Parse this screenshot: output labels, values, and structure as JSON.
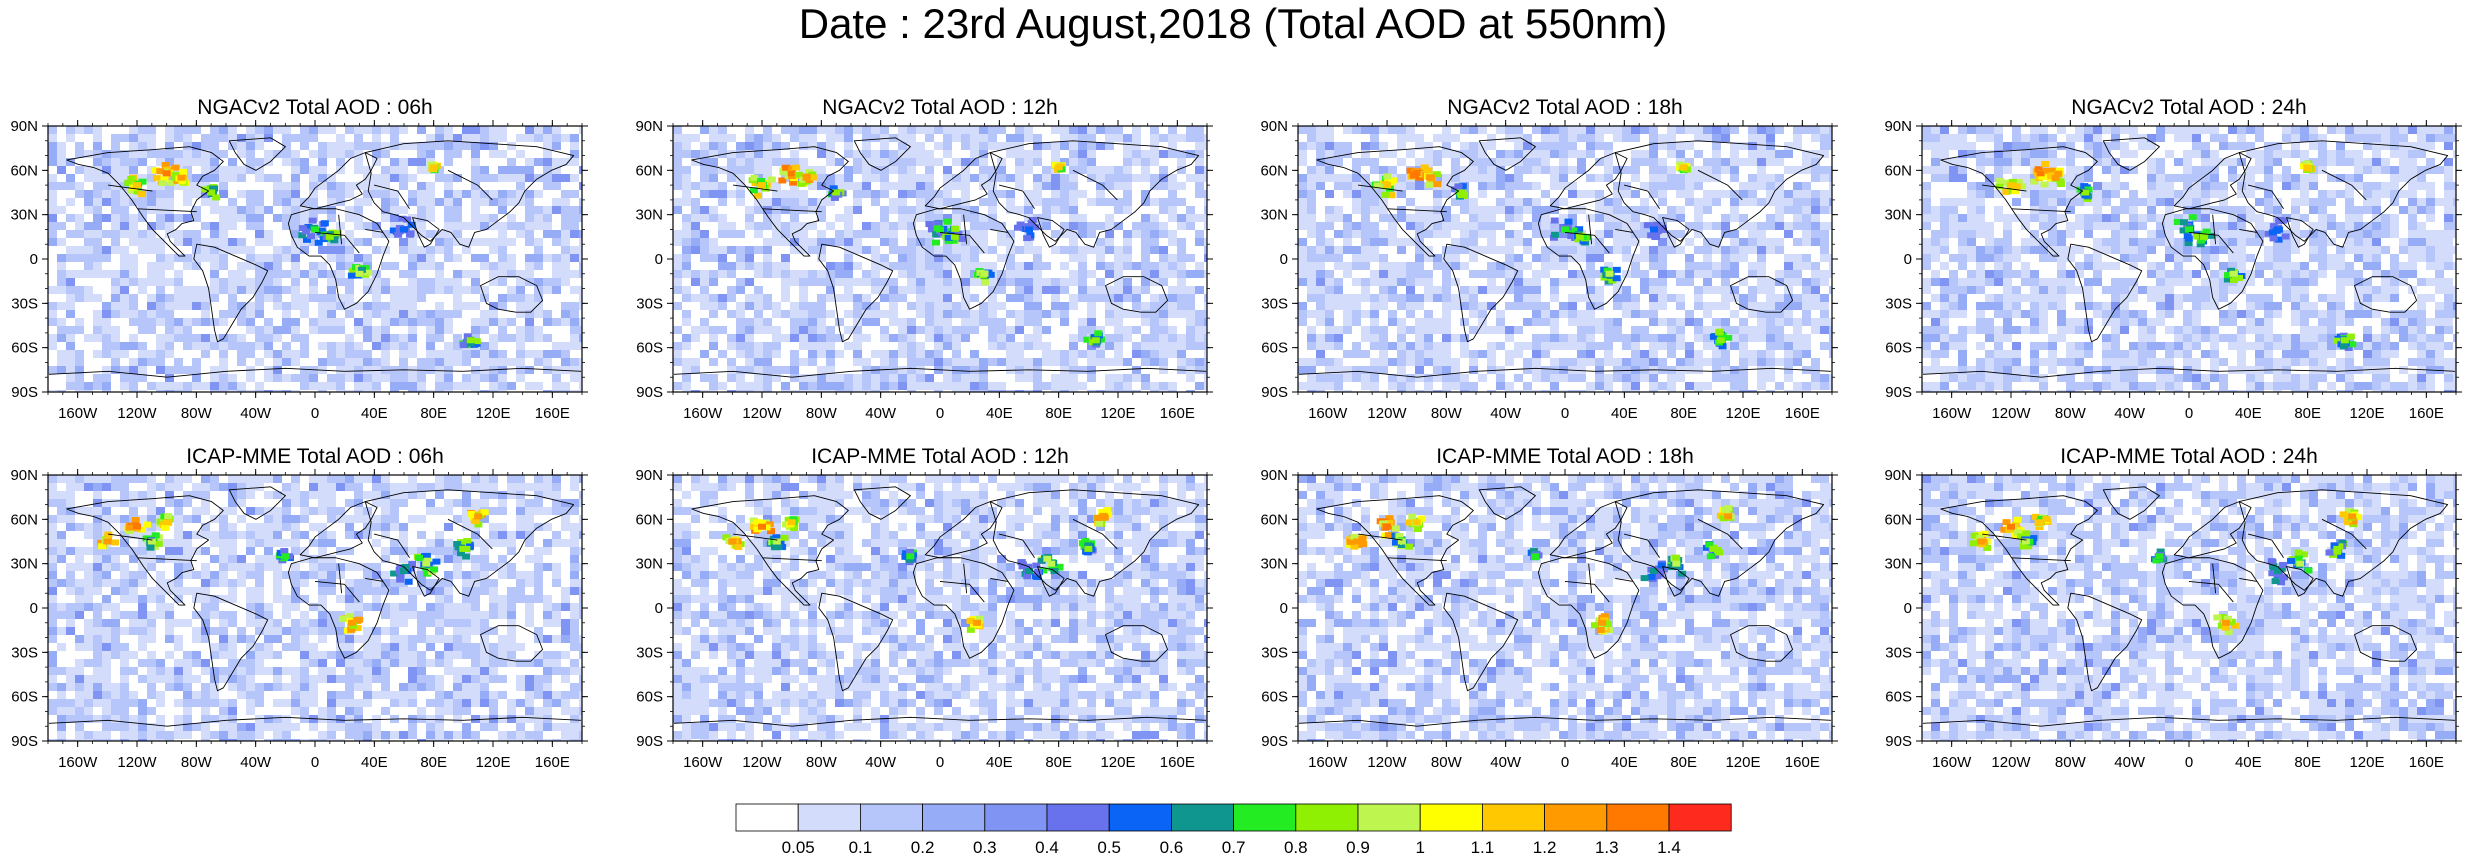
{
  "figure_title": "Date : 23rd August,2018 (Total AOD at 550nm)",
  "panels": [
    {
      "title": "NGACv2 Total AOD : 06h",
      "model": "NGACv2"
    },
    {
      "title": "NGACv2 Total AOD : 12h",
      "model": "NGACv2"
    },
    {
      "title": "NGACv2 Total AOD : 18h",
      "model": "NGACv2"
    },
    {
      "title": "NGACv2 Total AOD : 24h",
      "model": "NGACv2"
    },
    {
      "title": "ICAP-MME Total AOD : 06h",
      "model": "ICAP-MME"
    },
    {
      "title": "ICAP-MME Total AOD : 12h",
      "model": "ICAP-MME"
    },
    {
      "title": "ICAP-MME Total AOD : 18h",
      "model": "ICAP-MME"
    },
    {
      "title": "ICAP-MME Total AOD : 24h",
      "model": "ICAP-MME"
    }
  ],
  "axes": {
    "lat_labels": [
      "90N",
      "60N",
      "30N",
      "0",
      "30S",
      "60S",
      "90S"
    ],
    "lon_labels": [
      "160W",
      "120W",
      "80W",
      "40W",
      "0",
      "40E",
      "80E",
      "120E",
      "160E"
    ]
  },
  "colorbar": {
    "labels": [
      "0.05",
      "0.1",
      "0.2",
      "0.3",
      "0.4",
      "0.5",
      "0.6",
      "0.7",
      "0.8",
      "0.9",
      "1",
      "1.1",
      "1.2",
      "1.3",
      "1.4"
    ],
    "colors": [
      "#ffffff",
      "#d3dcfa",
      "#b6c6fa",
      "#96acf7",
      "#7f94f3",
      "#6872ec",
      "#0a64f5",
      "#0f978f",
      "#23ec23",
      "#90f003",
      "#bff54f",
      "#ffff00",
      "#ffc800",
      "#ff9a00",
      "#ff7800",
      "#ff2a1e"
    ]
  },
  "style": {
    "background_field_color": "#c4d2f6",
    "land_outline_color": "#000000"
  }
}
